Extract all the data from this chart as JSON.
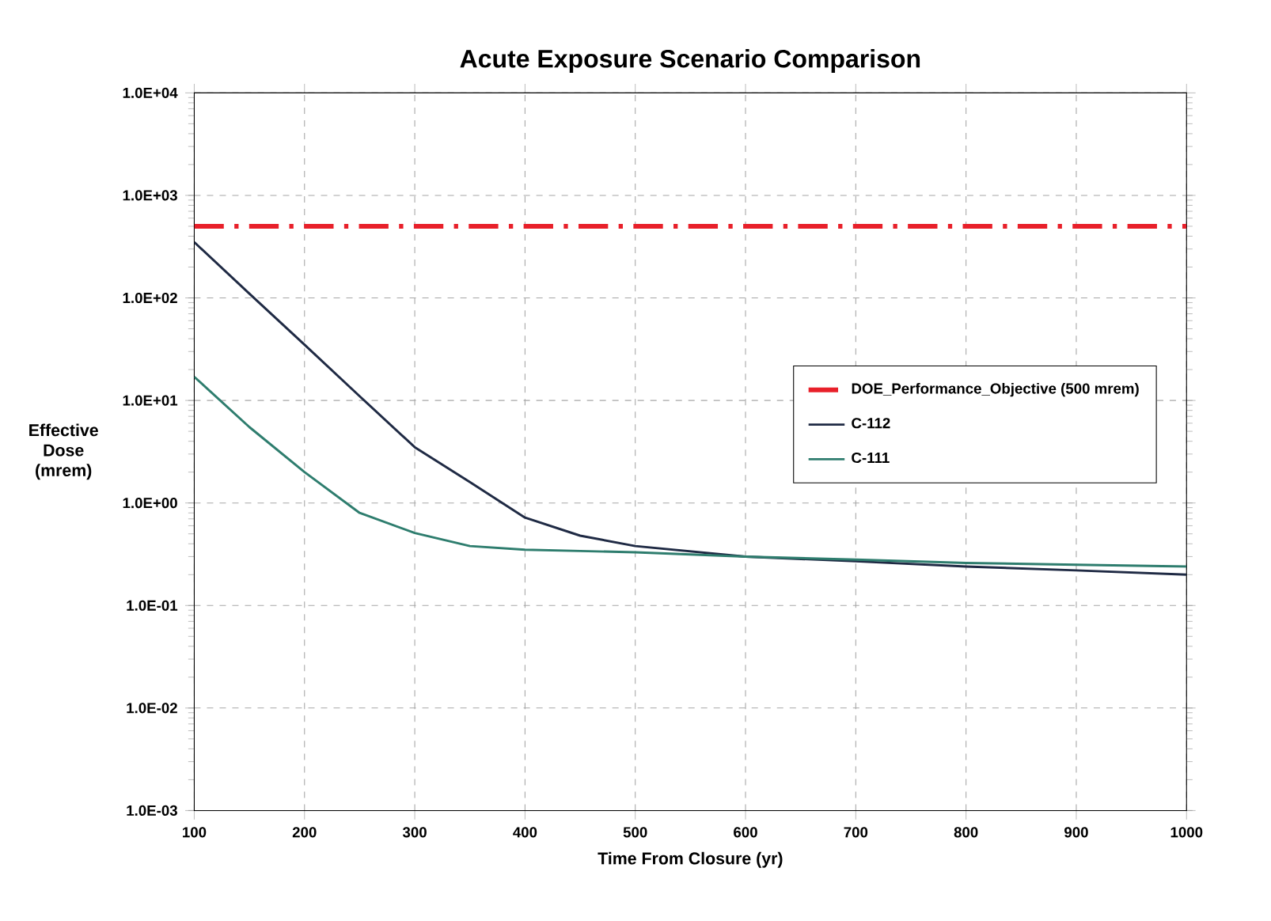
{
  "chart_data": {
    "type": "line",
    "title": "Acute Exposure Scenario Comparison",
    "xlabel": "Time From Closure (yr)",
    "ylabel": "Effective Dose (mrem)",
    "log": "y",
    "grid": true,
    "legend": "right",
    "xlim": [
      100,
      1000
    ],
    "ylim": [
      0.001,
      10000
    ],
    "xticks": [
      100,
      200,
      300,
      400,
      500,
      600,
      700,
      800,
      900,
      1000
    ],
    "yticks": [
      {
        "value": 0.001,
        "label": "1.0E-03"
      },
      {
        "value": 0.01,
        "label": "1.0E-02"
      },
      {
        "value": 0.1,
        "label": "1.0E-01"
      },
      {
        "value": 1,
        "label": "1.0E+00"
      },
      {
        "value": 10,
        "label": "1.0E+01"
      },
      {
        "value": 100,
        "label": "1.0E+02"
      },
      {
        "value": 1000,
        "label": "1.0E+03"
      },
      {
        "value": 10000,
        "label": "1.0E+04"
      }
    ],
    "series": [
      {
        "name": "DOE_Performance_Objective (500 mrem)",
        "color": "#e8202a",
        "line_style": "dashed",
        "x": [
          100,
          1000
        ],
        "values": [
          500,
          500
        ]
      },
      {
        "name": "C-112",
        "color": "#1f2a44",
        "x": [
          100,
          150,
          200,
          250,
          300,
          350,
          400,
          450,
          500,
          600,
          700,
          800,
          900,
          1000
        ],
        "values": [
          350,
          110,
          35,
          11,
          3.5,
          1.6,
          0.72,
          0.48,
          0.38,
          0.3,
          0.27,
          0.24,
          0.22,
          0.2
        ]
      },
      {
        "name": "C-111",
        "color": "#2e7d6e",
        "x": [
          100,
          150,
          200,
          250,
          300,
          350,
          400,
          450,
          500,
          600,
          700,
          800,
          900,
          1000
        ],
        "values": [
          17,
          5.5,
          2.0,
          0.8,
          0.51,
          0.38,
          0.35,
          0.34,
          0.33,
          0.3,
          0.28,
          0.26,
          0.25,
          0.24
        ]
      }
    ]
  }
}
